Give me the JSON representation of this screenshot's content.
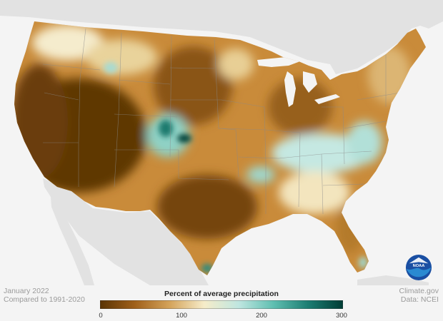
{
  "footer": {
    "date": "January 2022",
    "baseline": "Compared to 1991-2020",
    "source": "Climate.gov",
    "data_credit": "Data: NCEI"
  },
  "legend": {
    "title": "Percent of average precipitation",
    "ticks": [
      "0",
      "100",
      "200",
      "300"
    ],
    "color_stops": [
      "#5a3405",
      "#a0601a",
      "#d4a35a",
      "#f6ecc9",
      "#bfe6e0",
      "#5fbfb1",
      "#1c7d72",
      "#013d35"
    ]
  },
  "logo": {
    "text": "NOAA",
    "icon": "noaa-logo-icon"
  },
  "map": {
    "land_color": "#e2e2e2",
    "ocean_color": "#f4f4f4",
    "border_color": "#8a8a8a"
  }
}
